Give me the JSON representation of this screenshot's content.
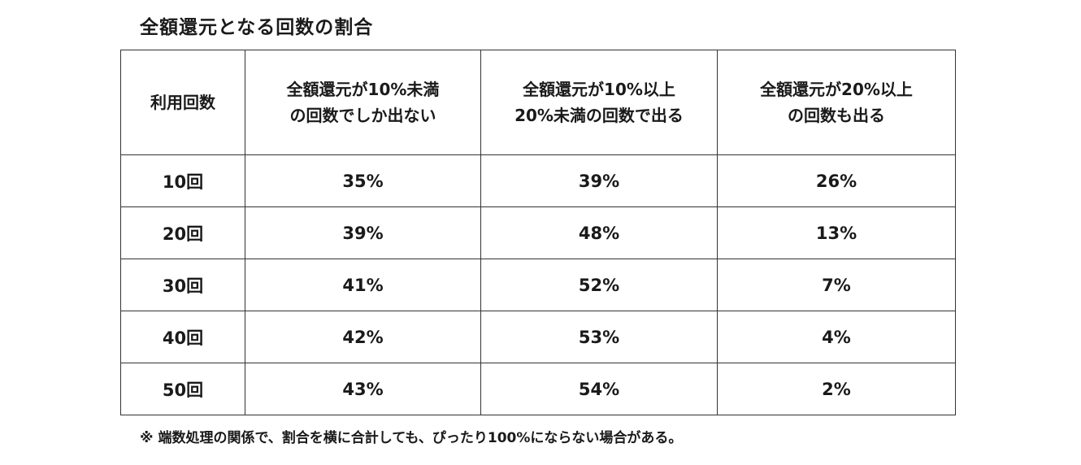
{
  "title": "全額還元となる回数の割合",
  "table": {
    "headers": [
      {
        "lines": [
          "利用回数"
        ]
      },
      {
        "lines": [
          "全額還元が10%未満",
          "の回数でしか出ない"
        ]
      },
      {
        "lines": [
          "全額還元が10%以上",
          "20%未満の回数で出る"
        ]
      },
      {
        "lines": [
          "全額還元が20%以上",
          "の回数も出る"
        ]
      }
    ],
    "rows": [
      {
        "count": "10回",
        "under10": "35%",
        "from10to20": "39%",
        "over20": "26%"
      },
      {
        "count": "20回",
        "under10": "39%",
        "from10to20": "48%",
        "over20": "13%"
      },
      {
        "count": "30回",
        "under10": "41%",
        "from10to20": "52%",
        "over20": "7%"
      },
      {
        "count": "40回",
        "under10": "42%",
        "from10to20": "53%",
        "over20": "4%"
      },
      {
        "count": "50回",
        "under10": "43%",
        "from10to20": "54%",
        "over20": "2%"
      }
    ]
  },
  "footnote": "※ 端数処理の関係で、割合を横に合計しても、ぴったり100%にならない場合がある。"
}
